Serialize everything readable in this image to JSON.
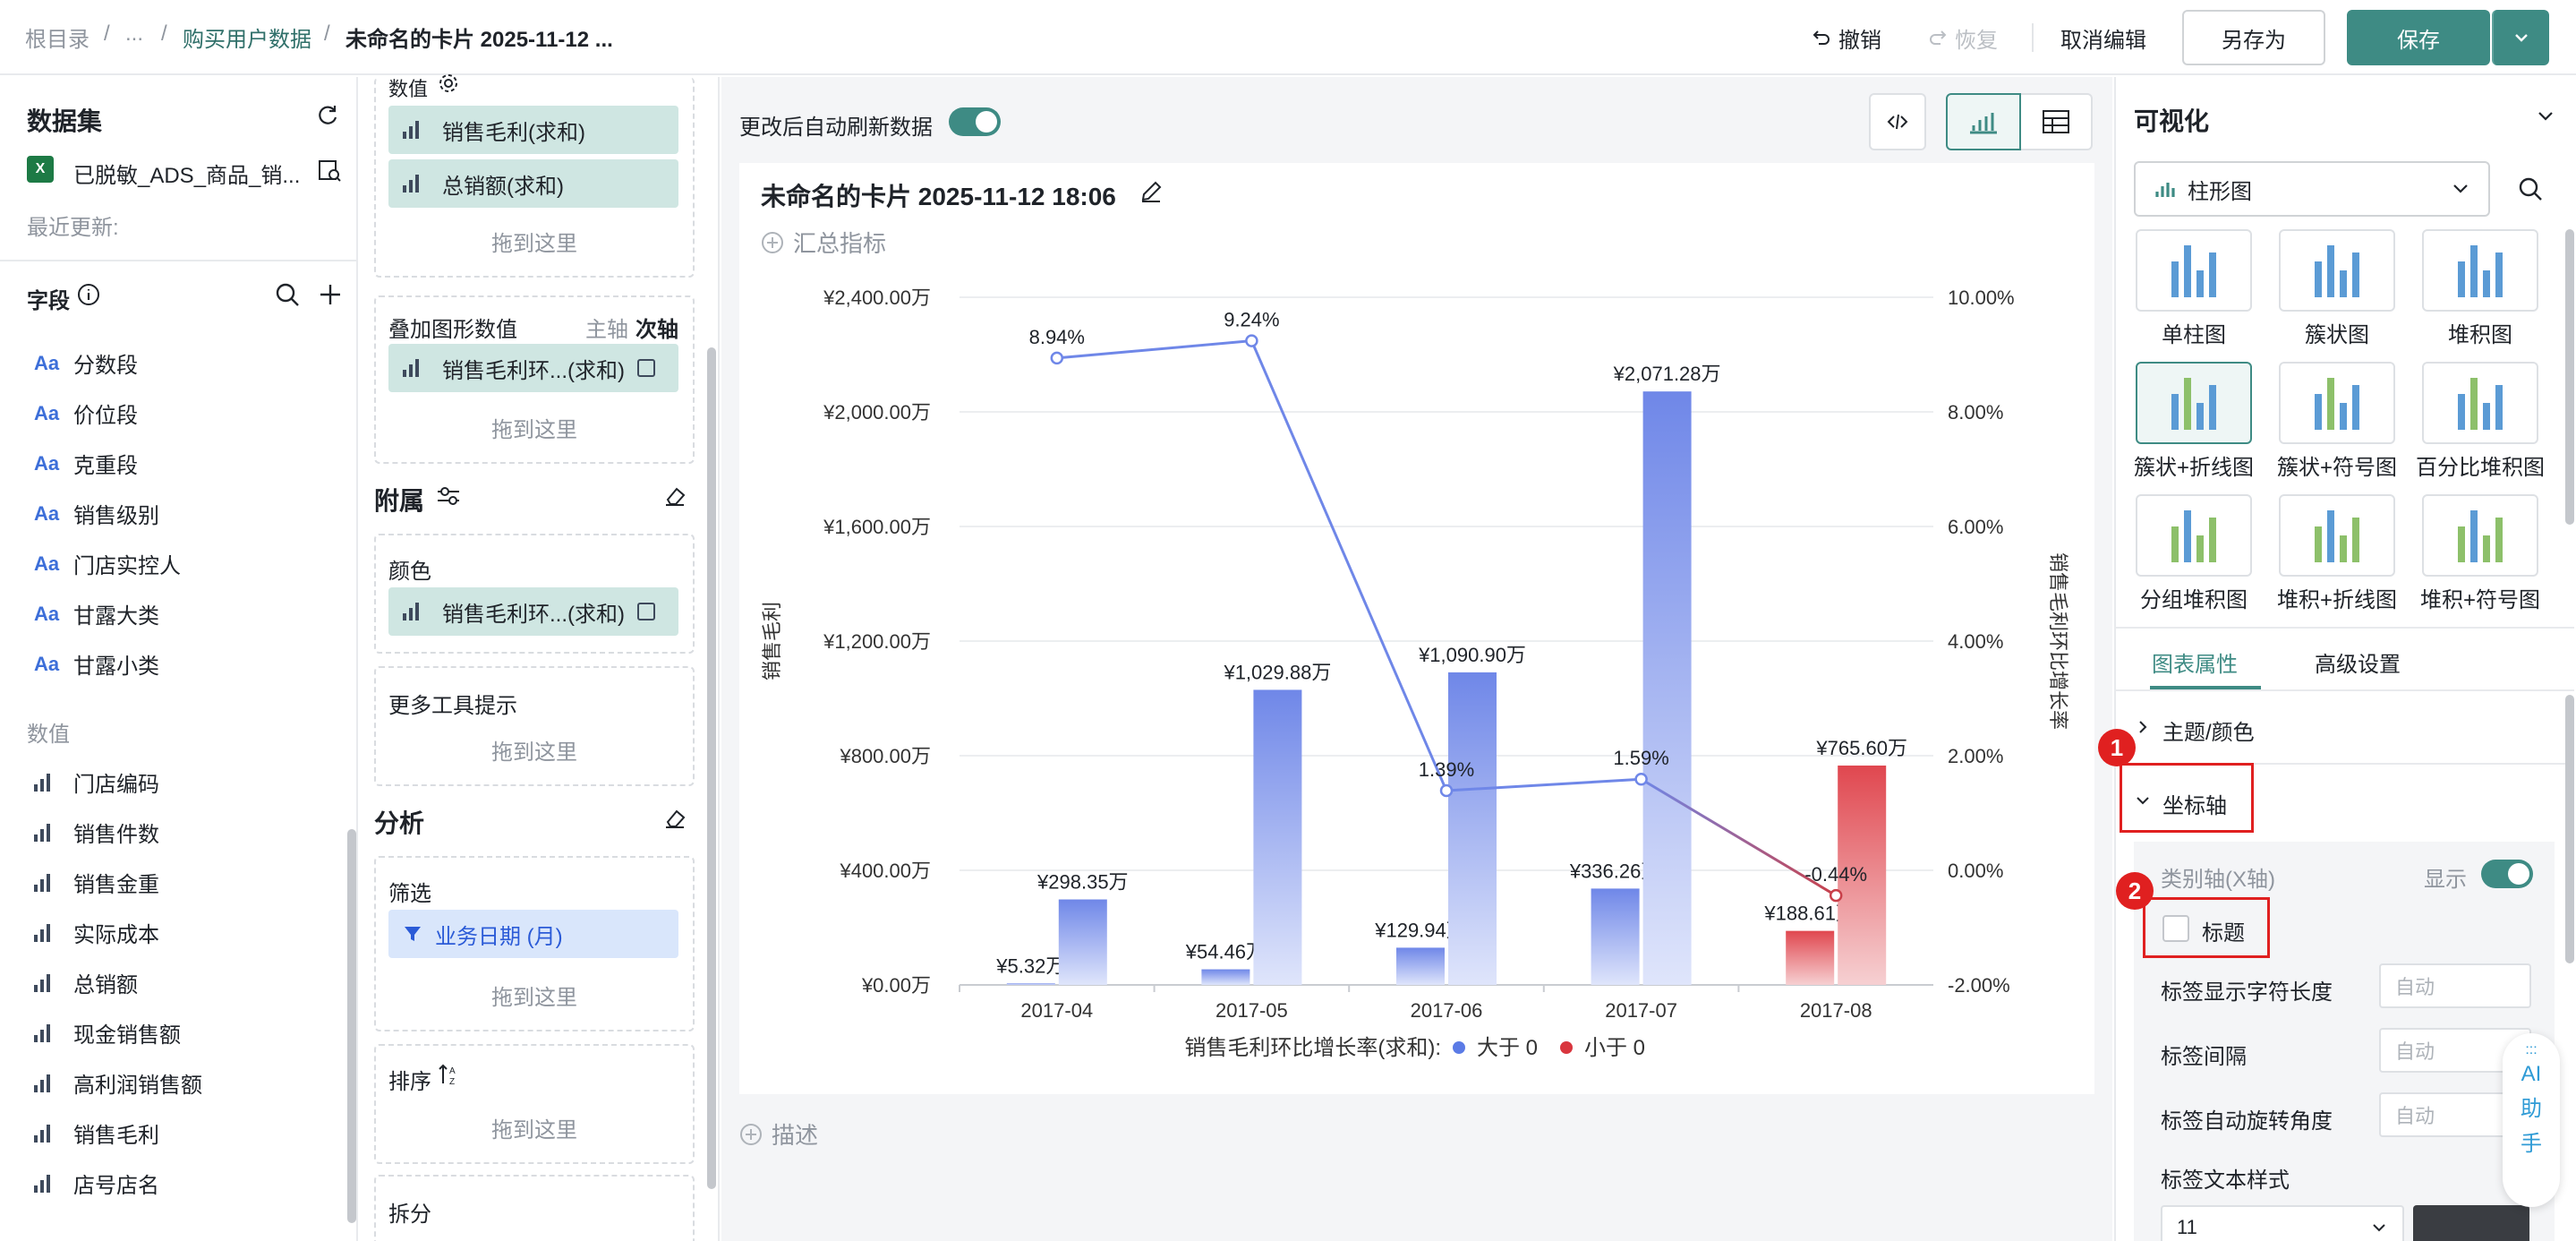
{
  "breadcrumb": {
    "root": "根目录",
    "sep": "/",
    "ellipsis": "...",
    "parent": "购买用户数据",
    "current": "未命名的卡片 2025-11-12 ..."
  },
  "toolbar": {
    "undo": "撤销",
    "redo": "恢复",
    "cancel_edit": "取消编辑",
    "save_as": "另存为",
    "save": "保存"
  },
  "dataset": {
    "title": "数据集",
    "name": "已脱敏_ADS_商品_销...",
    "updated_label": "最近更新:",
    "fields_title": "字段",
    "dimension_fields": [
      "分数段",
      "价位段",
      "克重段",
      "销售级别",
      "门店实控人",
      "甘露大类",
      "甘露小类"
    ],
    "measures_title": "数值",
    "measure_fields": [
      "门店编码",
      "销售件数",
      "销售金重",
      "实际成本",
      "总销额",
      "现金销售额",
      "高利润销售额",
      "销售毛利",
      "店号店名"
    ]
  },
  "config": {
    "values_label": "数值",
    "values": [
      "销售毛利(求和)",
      "总销额(求和)"
    ],
    "drop_here": "拖到这里",
    "overlay_title": "叠加图形数值",
    "primary_axis": "主轴",
    "secondary_axis": "次轴",
    "overlay_value": "销售毛利环...(求和)",
    "attach_title": "附属",
    "color_label": "颜色",
    "color_value": "销售毛利环...(求和)",
    "tooltip_label": "更多工具提示",
    "analysis_title": "分析",
    "filter_label": "筛选",
    "filter_value": "业务日期 (月)",
    "sort_label": "排序",
    "split_label": "拆分"
  },
  "canvas": {
    "auto_refresh_label": "更改后自动刷新数据",
    "auto_refresh_on": true,
    "card_title": "未命名的卡片 2025-11-12 18:06",
    "summary_metric": "汇总指标",
    "describe": "描述"
  },
  "chart_data": {
    "type": "bar",
    "categories": [
      "2017-04",
      "2017-05",
      "2017-06",
      "2017-07",
      "2017-08"
    ],
    "series": [
      {
        "name": "销售毛利",
        "values": [
          5.32,
          54.46,
          129.94,
          336.26,
          188.61
        ],
        "labels": [
          "¥5.32万",
          "¥54.46万",
          "¥129.94万",
          "¥336.26万",
          "¥188.61万"
        ]
      },
      {
        "name": "总销额",
        "values": [
          298.35,
          1029.88,
          1090.9,
          2071.28,
          765.6
        ],
        "labels": [
          "¥298.35万",
          "¥1,029.88万",
          "¥1,090.90万",
          "¥2,071.28万",
          "¥765.60万"
        ]
      }
    ],
    "line": {
      "name": "销售毛利环比增长率",
      "values": [
        8.94,
        9.24,
        1.39,
        1.59,
        -0.44
      ],
      "labels": [
        "8.94%",
        "9.24%",
        "1.39%",
        "1.59%",
        "-0.44%"
      ]
    },
    "ylabel": "销售毛利",
    "y2label": "销售毛利环比增长率",
    "ylim": [
      0,
      2400
    ],
    "yticks": [
      "¥2,400.00万",
      "¥2,000.00万",
      "¥1,600.00万",
      "¥1,200.00万",
      "¥800.00万",
      "¥400.00万",
      "¥0.00万"
    ],
    "y2lim": [
      -2,
      10
    ],
    "y2ticks": [
      "10.00%",
      "8.00%",
      "6.00%",
      "4.00%",
      "2.00%",
      "0.00%",
      "-2.00%"
    ],
    "legend": {
      "title": "销售毛利环比增长率(求和):",
      "items": [
        {
          "label": "大于 0",
          "color": "#5b7be6"
        },
        {
          "label": "小于 0",
          "color": "#d9363e"
        }
      ],
      "placement": "bottom"
    },
    "grid": true,
    "colors": {
      "positive": "#6f87e8",
      "negative": "#e0474f",
      "line": "#6f87e8"
    }
  },
  "viz": {
    "title": "可视化",
    "chart_type": "柱形图",
    "types": [
      "单柱图",
      "簇状图",
      "堆积图",
      "簇状+折线图",
      "簇状+符号图",
      "百分比堆积图",
      "分组堆积图",
      "堆积+折线图",
      "堆积+符号图"
    ],
    "tabs": [
      "图表属性",
      "高级设置"
    ],
    "theme_color": "主题/颜色",
    "axis": "坐标轴",
    "category_axis": "类别轴(X轴)",
    "show": "显示",
    "title_checkbox": "标题",
    "label_char_len": "标签显示字符长度",
    "label_interval": "标签间隔",
    "label_rotate": "标签自动旋转角度",
    "label_text_style": "标签文本样式",
    "auto": "自动",
    "font_size": "11",
    "ai_assistant": [
      "AI",
      "助",
      "手"
    ],
    "badges": [
      "1",
      "2"
    ]
  }
}
